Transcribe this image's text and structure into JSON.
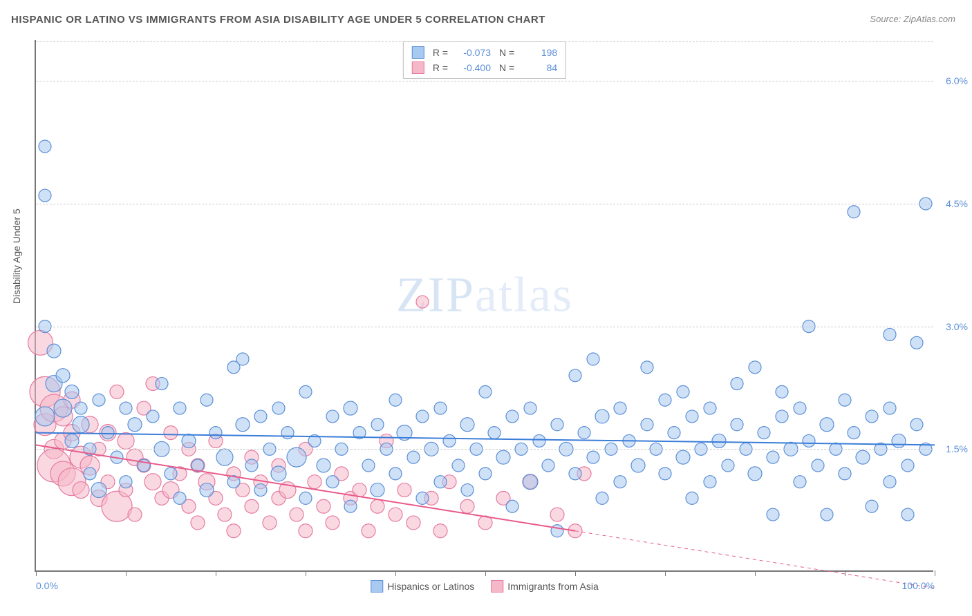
{
  "title": "HISPANIC OR LATINO VS IMMIGRANTS FROM ASIA DISABILITY AGE UNDER 5 CORRELATION CHART",
  "source_label": "Source:",
  "source_value": "ZipAtlas.com",
  "y_axis_title": "Disability Age Under 5",
  "watermark": "ZIPatlas",
  "chart": {
    "type": "scatter",
    "background_color": "#ffffff",
    "grid_color": "#cccccc",
    "xlim": [
      0,
      100
    ],
    "ylim": [
      0,
      6.5
    ],
    "x_ticks": [
      0,
      10,
      20,
      30,
      40,
      50,
      60,
      70,
      80,
      90,
      100
    ],
    "x_tick_labels": {
      "0": "0.0%",
      "100": "100.0%"
    },
    "y_ticks": [
      1.5,
      3.0,
      4.5,
      6.0
    ],
    "y_tick_labels": [
      "1.5%",
      "3.0%",
      "4.5%",
      "6.0%"
    ],
    "series": [
      {
        "name": "Hispanics or Latinos",
        "fill": "#a8c9f0",
        "stroke": "#5b8fd6",
        "fill_opacity": 0.55,
        "r_stat": "-0.073",
        "n_stat": "198",
        "trend": {
          "y_at_x0": 1.7,
          "y_at_x100": 1.55,
          "dash": false,
          "color": "#3b7dd8",
          "width": 2
        },
        "points": [
          [
            1,
            5.2,
            9
          ],
          [
            1,
            4.6,
            9
          ],
          [
            1,
            3.0,
            9
          ],
          [
            2,
            2.7,
            10
          ],
          [
            2,
            2.3,
            12
          ],
          [
            3,
            2.4,
            10
          ],
          [
            3,
            2.0,
            13
          ],
          [
            1,
            1.9,
            14
          ],
          [
            4,
            2.2,
            10
          ],
          [
            4,
            1.6,
            10
          ],
          [
            5,
            1.8,
            12
          ],
          [
            5,
            2.0,
            9
          ],
          [
            6,
            1.5,
            9
          ],
          [
            6,
            1.2,
            9
          ],
          [
            7,
            2.1,
            9
          ],
          [
            7,
            1.0,
            11
          ],
          [
            8,
            1.7,
            9
          ],
          [
            9,
            1.4,
            9
          ],
          [
            10,
            2.0,
            9
          ],
          [
            10,
            1.1,
            9
          ],
          [
            11,
            1.8,
            10
          ],
          [
            12,
            1.3,
            9
          ],
          [
            13,
            1.9,
            9
          ],
          [
            14,
            1.5,
            11
          ],
          [
            14,
            2.3,
            9
          ],
          [
            15,
            1.2,
            9
          ],
          [
            16,
            2.0,
            9
          ],
          [
            16,
            0.9,
            9
          ],
          [
            17,
            1.6,
            10
          ],
          [
            18,
            1.3,
            9
          ],
          [
            19,
            2.1,
            9
          ],
          [
            19,
            1.0,
            10
          ],
          [
            20,
            1.7,
            9
          ],
          [
            21,
            1.4,
            12
          ],
          [
            22,
            2.5,
            9
          ],
          [
            22,
            1.1,
            9
          ],
          [
            23,
            2.6,
            9
          ],
          [
            23,
            1.8,
            10
          ],
          [
            24,
            1.3,
            9
          ],
          [
            25,
            1.9,
            9
          ],
          [
            25,
            1.0,
            9
          ],
          [
            26,
            1.5,
            9
          ],
          [
            27,
            2.0,
            9
          ],
          [
            27,
            1.2,
            11
          ],
          [
            28,
            1.7,
            9
          ],
          [
            29,
            1.4,
            14
          ],
          [
            30,
            2.2,
            9
          ],
          [
            30,
            0.9,
            9
          ],
          [
            31,
            1.6,
            9
          ],
          [
            32,
            1.3,
            10
          ],
          [
            33,
            1.9,
            9
          ],
          [
            33,
            1.1,
            9
          ],
          [
            34,
            1.5,
            9
          ],
          [
            35,
            2.0,
            10
          ],
          [
            35,
            0.8,
            9
          ],
          [
            36,
            1.7,
            9
          ],
          [
            37,
            1.3,
            9
          ],
          [
            38,
            1.8,
            9
          ],
          [
            38,
            1.0,
            10
          ],
          [
            39,
            1.5,
            9
          ],
          [
            40,
            2.1,
            9
          ],
          [
            40,
            1.2,
            9
          ],
          [
            41,
            1.7,
            11
          ],
          [
            42,
            1.4,
            9
          ],
          [
            43,
            1.9,
            9
          ],
          [
            43,
            0.9,
            9
          ],
          [
            44,
            1.5,
            10
          ],
          [
            45,
            2.0,
            9
          ],
          [
            45,
            1.1,
            9
          ],
          [
            46,
            1.6,
            9
          ],
          [
            47,
            1.3,
            9
          ],
          [
            48,
            1.8,
            10
          ],
          [
            48,
            1.0,
            9
          ],
          [
            49,
            1.5,
            9
          ],
          [
            50,
            2.2,
            9
          ],
          [
            50,
            1.2,
            9
          ],
          [
            51,
            1.7,
            9
          ],
          [
            52,
            1.4,
            10
          ],
          [
            53,
            1.9,
            9
          ],
          [
            53,
            0.8,
            9
          ],
          [
            54,
            1.5,
            9
          ],
          [
            55,
            2.0,
            9
          ],
          [
            55,
            1.1,
            11
          ],
          [
            56,
            1.6,
            9
          ],
          [
            57,
            1.3,
            9
          ],
          [
            58,
            1.8,
            9
          ],
          [
            58,
            0.5,
            9
          ],
          [
            59,
            1.5,
            10
          ],
          [
            60,
            2.4,
            9
          ],
          [
            60,
            1.2,
            9
          ],
          [
            61,
            1.7,
            9
          ],
          [
            62,
            1.4,
            9
          ],
          [
            62,
            2.6,
            9
          ],
          [
            63,
            1.9,
            10
          ],
          [
            63,
            0.9,
            9
          ],
          [
            64,
            1.5,
            9
          ],
          [
            65,
            2.0,
            9
          ],
          [
            65,
            1.1,
            9
          ],
          [
            66,
            1.6,
            9
          ],
          [
            67,
            1.3,
            10
          ],
          [
            68,
            1.8,
            9
          ],
          [
            68,
            2.5,
            9
          ],
          [
            69,
            1.5,
            9
          ],
          [
            70,
            2.1,
            9
          ],
          [
            70,
            1.2,
            9
          ],
          [
            71,
            1.7,
            9
          ],
          [
            72,
            1.4,
            10
          ],
          [
            72,
            2.2,
            9
          ],
          [
            73,
            1.9,
            9
          ],
          [
            73,
            0.9,
            9
          ],
          [
            74,
            1.5,
            9
          ],
          [
            75,
            2.0,
            9
          ],
          [
            75,
            1.1,
            9
          ],
          [
            76,
            1.6,
            10
          ],
          [
            77,
            1.3,
            9
          ],
          [
            78,
            1.8,
            9
          ],
          [
            78,
            2.3,
            9
          ],
          [
            79,
            1.5,
            9
          ],
          [
            80,
            2.5,
            9
          ],
          [
            80,
            1.2,
            10
          ],
          [
            81,
            1.7,
            9
          ],
          [
            82,
            1.4,
            9
          ],
          [
            82,
            0.7,
            9
          ],
          [
            83,
            1.9,
            9
          ],
          [
            83,
            2.2,
            9
          ],
          [
            84,
            1.5,
            10
          ],
          [
            85,
            2.0,
            9
          ],
          [
            85,
            1.1,
            9
          ],
          [
            86,
            1.6,
            9
          ],
          [
            86,
            3.0,
            9
          ],
          [
            87,
            1.3,
            9
          ],
          [
            88,
            1.8,
            10
          ],
          [
            88,
            0.7,
            9
          ],
          [
            89,
            1.5,
            9
          ],
          [
            90,
            2.1,
            9
          ],
          [
            90,
            1.2,
            9
          ],
          [
            91,
            1.7,
            9
          ],
          [
            91,
            4.4,
            9
          ],
          [
            92,
            1.4,
            10
          ],
          [
            93,
            1.9,
            9
          ],
          [
            93,
            0.8,
            9
          ],
          [
            94,
            1.5,
            9
          ],
          [
            95,
            2.0,
            9
          ],
          [
            95,
            1.1,
            9
          ],
          [
            95,
            2.9,
            9
          ],
          [
            96,
            1.6,
            10
          ],
          [
            97,
            1.3,
            9
          ],
          [
            97,
            0.7,
            9
          ],
          [
            98,
            2.8,
            9
          ],
          [
            98,
            1.8,
            9
          ],
          [
            99,
            4.5,
            9
          ],
          [
            99,
            1.5,
            9
          ]
        ]
      },
      {
        "name": "Immigrants from Asia",
        "fill": "#f5b8c9",
        "stroke": "#e57ba0",
        "fill_opacity": 0.55,
        "r_stat": "-0.400",
        "n_stat": "84",
        "trend": {
          "y_at_x0": 1.55,
          "y_at_x100": -0.2,
          "dash_after_x": 60,
          "color": "#e85a8a",
          "width": 2
        },
        "points": [
          [
            0.5,
            2.8,
            18
          ],
          [
            1,
            2.2,
            22
          ],
          [
            1,
            1.8,
            16
          ],
          [
            2,
            2.0,
            20
          ],
          [
            2,
            1.5,
            14
          ],
          [
            2,
            1.3,
            24
          ],
          [
            3,
            1.9,
            14
          ],
          [
            3,
            1.2,
            18
          ],
          [
            3,
            1.6,
            12
          ],
          [
            4,
            1.1,
            20
          ],
          [
            4,
            1.7,
            12
          ],
          [
            4,
            2.1,
            12
          ],
          [
            5,
            1.4,
            16
          ],
          [
            5,
            1.0,
            12
          ],
          [
            6,
            1.8,
            12
          ],
          [
            6,
            1.3,
            14
          ],
          [
            7,
            0.9,
            12
          ],
          [
            7,
            1.5,
            10
          ],
          [
            8,
            1.7,
            12
          ],
          [
            8,
            1.1,
            10
          ],
          [
            9,
            2.2,
            10
          ],
          [
            9,
            0.8,
            22
          ],
          [
            10,
            1.6,
            12
          ],
          [
            10,
            1.0,
            10
          ],
          [
            11,
            1.4,
            12
          ],
          [
            11,
            0.7,
            10
          ],
          [
            12,
            1.3,
            10
          ],
          [
            12,
            2.0,
            10
          ],
          [
            13,
            1.1,
            12
          ],
          [
            13,
            2.3,
            10
          ],
          [
            14,
            0.9,
            10
          ],
          [
            15,
            1.7,
            10
          ],
          [
            15,
            1.0,
            12
          ],
          [
            16,
            1.2,
            10
          ],
          [
            17,
            0.8,
            10
          ],
          [
            17,
            1.5,
            10
          ],
          [
            18,
            1.3,
            10
          ],
          [
            18,
            0.6,
            10
          ],
          [
            19,
            1.1,
            12
          ],
          [
            20,
            0.9,
            10
          ],
          [
            20,
            1.6,
            10
          ],
          [
            21,
            0.7,
            10
          ],
          [
            22,
            1.2,
            10
          ],
          [
            22,
            0.5,
            10
          ],
          [
            23,
            1.0,
            10
          ],
          [
            24,
            1.4,
            10
          ],
          [
            24,
            0.8,
            10
          ],
          [
            25,
            1.1,
            10
          ],
          [
            26,
            0.6,
            10
          ],
          [
            27,
            1.3,
            10
          ],
          [
            27,
            0.9,
            10
          ],
          [
            28,
            1.0,
            12
          ],
          [
            29,
            0.7,
            10
          ],
          [
            30,
            1.5,
            10
          ],
          [
            30,
            0.5,
            10
          ],
          [
            31,
            1.1,
            10
          ],
          [
            32,
            0.8,
            10
          ],
          [
            33,
            0.6,
            10
          ],
          [
            34,
            1.2,
            10
          ],
          [
            35,
            0.9,
            10
          ],
          [
            36,
            1.0,
            10
          ],
          [
            37,
            0.5,
            10
          ],
          [
            38,
            0.8,
            10
          ],
          [
            39,
            1.6,
            10
          ],
          [
            40,
            0.7,
            10
          ],
          [
            41,
            1.0,
            10
          ],
          [
            42,
            0.6,
            10
          ],
          [
            43,
            3.3,
            9
          ],
          [
            44,
            0.9,
            10
          ],
          [
            45,
            0.5,
            10
          ],
          [
            46,
            1.1,
            10
          ],
          [
            48,
            0.8,
            10
          ],
          [
            50,
            0.6,
            10
          ],
          [
            52,
            0.9,
            10
          ],
          [
            55,
            1.1,
            10
          ],
          [
            58,
            0.7,
            10
          ],
          [
            60,
            0.5,
            10
          ],
          [
            61,
            1.2,
            10
          ]
        ]
      }
    ]
  },
  "stats_box": {
    "r_label": "R =",
    "n_label": "N ="
  },
  "bottom_legend": [
    {
      "label": "Hispanics or Latinos",
      "swatch": "blue"
    },
    {
      "label": "Immigrants from Asia",
      "swatch": "pink"
    }
  ]
}
